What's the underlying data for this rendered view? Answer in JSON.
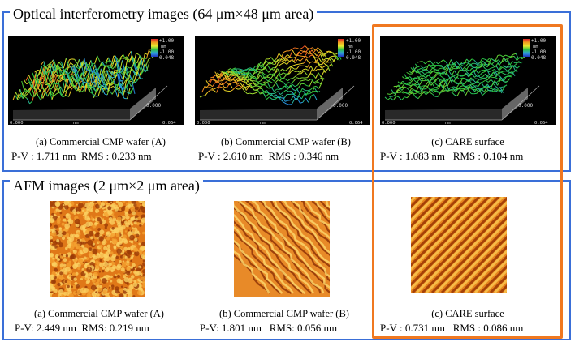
{
  "optical": {
    "title": "Optical interferometry images (64 μm×48 μm area)",
    "scale_top": "+1.00",
    "scale_unit": "nm",
    "scale_bottom": "-1.00",
    "z_ticks": [
      "0.048",
      "0.000"
    ],
    "x_ticks": [
      "0.000",
      "nm",
      "0.064"
    ],
    "panels": [
      {
        "caption": "(a) Commercial CMP wafer (A)",
        "pv": "P-V : 1.711 nm",
        "rms": "RMS : 0.233 nm",
        "palette": "mixed"
      },
      {
        "caption": "(b) Commercial CMP wafer (B)",
        "pv": "P-V : 2.610 nm",
        "rms": "RMS : 0.346 nm",
        "palette": "wavy"
      },
      {
        "caption": "(c) CARE surface",
        "pv": "P-V : 1.083 nm",
        "rms": "RMS : 0.104 nm",
        "palette": "green"
      }
    ]
  },
  "afm": {
    "title": "AFM images (2 μm×2 μm area)",
    "panels": [
      {
        "caption": "(a) Commercial CMP wafer (A)",
        "pv": "P-V: 2.449 nm",
        "rms": "RMS: 0.219 nm",
        "texture": "grainy"
      },
      {
        "caption": "(b) Commercial CMP wafer (B)",
        "pv": "P-V: 1.801 nm",
        "rms": "RMS: 0.056 nm",
        "texture": "terrace"
      },
      {
        "caption": "(c) CARE surface",
        "pv": "P-V : 0.731 nm",
        "rms": "RMS : 0.086 nm",
        "texture": "steps"
      }
    ]
  },
  "colors": {
    "section_border": "#3a6fd8",
    "highlight_border": "#f07820"
  }
}
